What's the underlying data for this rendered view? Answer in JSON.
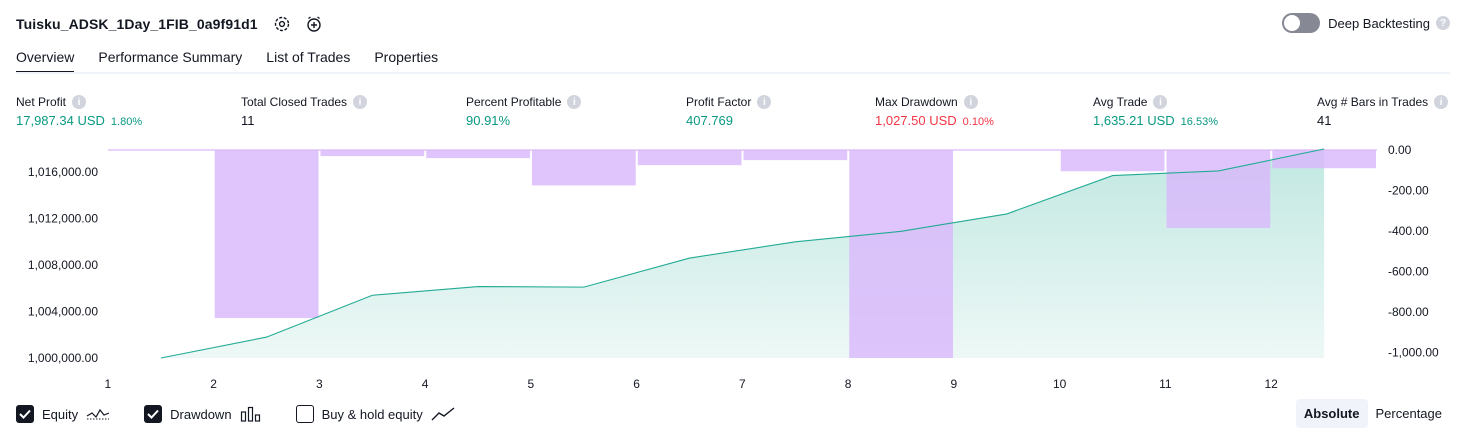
{
  "header": {
    "strategy_name": "Tuisku_ADSK_1Day_1FIB_0a9f91d1",
    "deep_backtesting_label": "Deep Backtesting"
  },
  "tabs": [
    {
      "label": "Overview"
    },
    {
      "label": "Performance Summary"
    },
    {
      "label": "List of Trades"
    },
    {
      "label": "Properties"
    }
  ],
  "metrics": {
    "net_profit": {
      "label": "Net Profit",
      "value": "17,987.34 USD",
      "pct": "1.80%"
    },
    "total_closed_trades": {
      "label": "Total Closed Trades",
      "value": "11"
    },
    "percent_profitable": {
      "label": "Percent Profitable",
      "value": "90.91%"
    },
    "profit_factor": {
      "label": "Profit Factor",
      "value": "407.769"
    },
    "max_drawdown": {
      "label": "Max Drawdown",
      "value": "1,027.50 USD",
      "pct": "0.10%"
    },
    "avg_trade": {
      "label": "Avg Trade",
      "value": "1,635.21 USD",
      "pct": "16.53%"
    },
    "avg_bars": {
      "label": "Avg # Bars in Trades",
      "value": "41"
    }
  },
  "footer": {
    "equity_label": "Equity",
    "drawdown_label": "Drawdown",
    "buy_hold_label": "Buy & hold equity",
    "equity_checked": true,
    "drawdown_checked": true,
    "buy_hold_checked": false,
    "absolute_label": "Absolute",
    "percentage_label": "Percentage"
  },
  "colors": {
    "positive": "#089981",
    "negative": "#f23645",
    "equity_line": "#22ab94",
    "drawdown_bar": "#d9b8fb",
    "drawdown_line": "#d7a6f5"
  },
  "chart_data": {
    "type": "area",
    "categories": [
      "1",
      "2",
      "3",
      "4",
      "5",
      "6",
      "7",
      "8",
      "9",
      "10",
      "11",
      "12"
    ],
    "left_ticks": [
      "1,000,000.00",
      "1,004,000.00",
      "1,008,000.00",
      "1,012,000.00",
      "1,016,000.00"
    ],
    "right_ticks": [
      "0.00",
      "-200.00",
      "-400.00",
      "-600.00",
      "-800.00",
      "-1,000.00"
    ],
    "ylim_left": [
      1000000,
      1017900
    ],
    "ylim_right": [
      -1027.5,
      0
    ],
    "series": [
      {
        "name": "Equity",
        "axis": "left",
        "values": [
          1000000,
          1001800,
          1005400,
          1006150,
          1006100,
          1008600,
          1010000,
          1010900,
          1012400,
          1015700,
          1016100,
          1017987
        ]
      },
      {
        "name": "Drawdown",
        "axis": "right",
        "values": [
          0,
          -830,
          -30,
          -40,
          -175,
          -75,
          -50,
          -1027.5,
          0,
          -105,
          -385,
          -90
        ]
      }
    ]
  }
}
